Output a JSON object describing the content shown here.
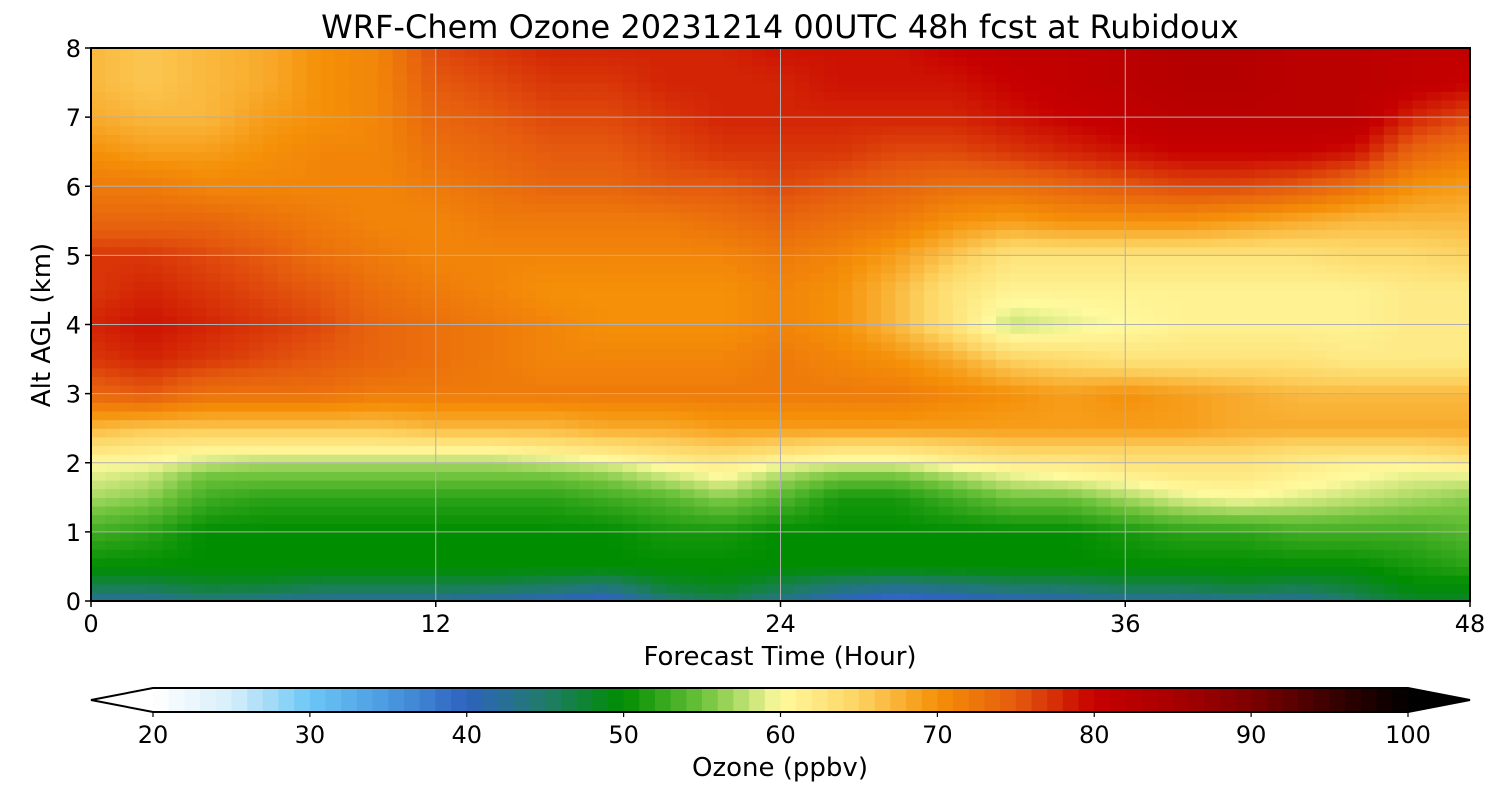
{
  "chart_data": {
    "type": "heatmap",
    "title": "WRF-Chem Ozone  20231214 00UTC 48h fcst at Rubidoux",
    "xlabel": "Forecast Time (Hour)",
    "ylabel": "Alt AGL (km)",
    "xlim": [
      0,
      48
    ],
    "ylim": [
      0,
      8
    ],
    "xticks": [
      0,
      12,
      24,
      36,
      48
    ],
    "yticks": [
      0,
      1,
      2,
      3,
      4,
      5,
      6,
      7,
      8
    ],
    "grid": true,
    "x": [
      0,
      2,
      4,
      6,
      8,
      10,
      12,
      14,
      16,
      18,
      20,
      22,
      24,
      26,
      28,
      30,
      32,
      34,
      36,
      38,
      40,
      42,
      44,
      46,
      48
    ],
    "y": [
      0,
      0.25,
      0.5,
      1,
      1.5,
      1.8,
      2,
      2.2,
      2.5,
      3,
      3.5,
      4,
      4.5,
      5,
      5.5,
      6,
      6.5,
      7,
      7.5,
      8
    ],
    "z": [
      [
        42,
        42,
        44,
        43,
        42,
        42,
        42,
        41,
        40,
        39,
        44,
        46,
        43,
        40,
        38,
        39,
        40,
        41,
        42,
        42,
        43,
        42,
        45,
        48,
        48
      ],
      [
        47,
        47,
        48,
        48,
        47,
        47,
        47,
        47,
        46,
        45,
        48,
        49,
        47,
        45,
        44,
        45,
        46,
        46,
        47,
        47,
        48,
        47,
        48,
        50,
        50
      ],
      [
        50,
        50,
        50,
        50,
        50,
        50,
        50,
        50,
        50,
        50,
        50,
        50,
        50,
        50,
        50,
        50,
        50,
        50,
        50,
        50,
        50,
        50,
        50,
        51,
        52
      ],
      [
        53,
        52,
        50,
        50,
        50,
        50,
        50,
        50,
        50,
        50,
        51,
        51,
        50,
        50,
        50,
        50,
        50,
        50,
        51,
        52,
        52,
        53,
        53,
        53,
        54
      ],
      [
        57,
        56,
        53,
        52,
        52,
        52,
        52,
        52,
        52,
        53,
        54,
        56,
        54,
        51,
        51,
        53,
        55,
        55,
        57,
        59,
        60,
        59,
        58,
        57,
        56
      ],
      [
        59,
        58,
        55,
        55,
        55,
        55,
        55,
        55,
        55,
        56,
        58,
        60,
        57,
        55,
        55,
        57,
        59,
        60,
        61,
        62,
        62,
        61,
        60,
        59,
        59
      ],
      [
        60,
        60,
        58,
        57,
        57,
        57,
        57,
        57,
        58,
        59,
        61,
        62,
        60,
        59,
        59,
        61,
        62,
        62,
        63,
        63,
        63,
        62,
        61,
        61,
        62
      ],
      [
        63,
        62,
        61,
        61,
        61,
        61,
        61,
        61,
        62,
        63,
        64,
        65,
        64,
        63,
        63,
        64,
        65,
        65,
        65,
        65,
        65,
        64,
        64,
        64,
        65
      ],
      [
        67,
        66,
        66,
        66,
        66,
        66,
        67,
        67,
        67,
        68,
        68,
        69,
        69,
        69,
        69,
        69,
        69,
        69,
        69,
        69,
        68,
        68,
        68,
        68,
        68
      ],
      [
        74,
        75,
        73,
        73,
        73,
        72,
        72,
        72,
        72,
        72,
        72,
        72,
        72,
        72,
        72,
        71,
        70,
        69,
        70,
        69,
        68,
        67,
        67,
        67,
        67
      ],
      [
        77,
        78,
        77,
        76,
        75,
        74,
        73,
        72,
        71,
        71,
        71,
        71,
        72,
        71,
        70,
        68,
        65,
        64,
        63,
        63,
        63,
        63,
        62,
        62,
        62
      ],
      [
        78,
        79,
        78,
        77,
        76,
        74,
        73,
        72,
        71,
        70,
        70,
        70,
        71,
        70,
        67,
        63,
        58,
        59,
        60,
        61,
        61,
        61,
        61,
        62,
        62
      ],
      [
        77,
        78,
        77,
        76,
        75,
        73,
        72,
        71,
        70,
        70,
        70,
        70,
        71,
        70,
        67,
        63,
        61,
        61,
        61,
        61,
        61,
        61,
        61,
        62,
        62
      ],
      [
        77,
        77,
        76,
        75,
        73,
        72,
        71,
        71,
        71,
        71,
        71,
        71,
        72,
        71,
        69,
        66,
        63,
        63,
        63,
        63,
        63,
        63,
        64,
        64,
        65
      ],
      [
        74,
        74,
        74,
        73,
        72,
        71,
        71,
        72,
        72,
        72,
        72,
        73,
        74,
        73,
        72,
        70,
        69,
        70,
        70,
        70,
        69,
        68,
        67,
        67,
        67
      ],
      [
        72,
        72,
        71,
        71,
        71,
        71,
        72,
        73,
        74,
        74,
        75,
        75,
        76,
        75,
        74,
        73,
        73,
        74,
        75,
        76,
        76,
        75,
        73,
        70,
        69
      ],
      [
        70,
        69,
        69,
        70,
        71,
        71,
        73,
        74,
        75,
        75,
        76,
        77,
        77,
        77,
        76,
        76,
        77,
        78,
        79,
        80,
        80,
        80,
        79,
        74,
        72
      ],
      [
        68,
        67,
        67,
        69,
        70,
        71,
        74,
        75,
        76,
        76,
        77,
        78,
        78,
        78,
        78,
        78,
        79,
        80,
        81,
        82,
        82,
        82,
        82,
        78,
        76
      ],
      [
        67,
        66,
        67,
        68,
        70,
        71,
        75,
        76,
        77,
        77,
        78,
        78,
        78,
        79,
        79,
        79,
        80,
        81,
        82,
        83,
        83,
        82,
        82,
        81,
        80
      ],
      [
        67,
        66,
        67,
        68,
        70,
        71,
        76,
        77,
        78,
        78,
        78,
        78,
        79,
        79,
        79,
        80,
        81,
        81,
        82,
        83,
        83,
        82,
        82,
        81,
        81
      ]
    ],
    "colorbar": {
      "label": "Ozone  (ppbv)",
      "range": [
        20,
        100
      ],
      "ticks": [
        20,
        30,
        40,
        50,
        60,
        70,
        80,
        90,
        100
      ],
      "extend": "both",
      "orientation": "horizontal",
      "placement": "bottom",
      "stops": [
        {
          "v": 20,
          "c": "#ffffff"
        },
        {
          "v": 25,
          "c": "#d6eefb"
        },
        {
          "v": 30,
          "c": "#6bc7f5"
        },
        {
          "v": 35,
          "c": "#4a99e0"
        },
        {
          "v": 40,
          "c": "#2e63be"
        },
        {
          "v": 45,
          "c": "#1f7b6a"
        },
        {
          "v": 50,
          "c": "#008d00"
        },
        {
          "v": 55,
          "c": "#6cc23a"
        },
        {
          "v": 60,
          "c": "#fffa9e"
        },
        {
          "v": 65,
          "c": "#fdd362"
        },
        {
          "v": 70,
          "c": "#f59008"
        },
        {
          "v": 75,
          "c": "#e55b0e"
        },
        {
          "v": 80,
          "c": "#c70000"
        },
        {
          "v": 85,
          "c": "#a90000"
        },
        {
          "v": 90,
          "c": "#7d0000"
        },
        {
          "v": 95,
          "c": "#3b0000"
        },
        {
          "v": 100,
          "c": "#000000"
        }
      ]
    }
  }
}
